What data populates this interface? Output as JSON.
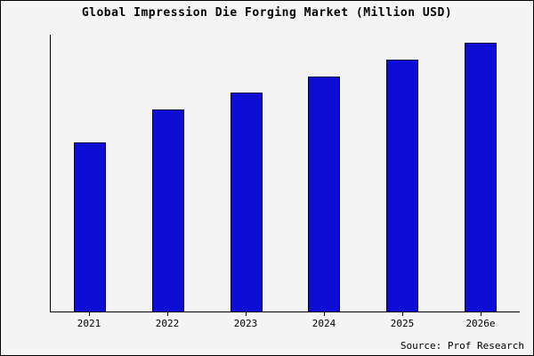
{
  "title": "Global Impression Die Forging Market (Million USD)",
  "source": "Source: Prof Research",
  "colors": {
    "bar_fill": "#0d0dd6",
    "bar_edge": "#000040",
    "background": "#f4f4f4",
    "frame_border": "#000000"
  },
  "chart_data": {
    "type": "bar",
    "title": "Global Impression Die Forging Market (Million USD)",
    "categories": [
      "2021",
      "2022",
      "2023",
      "2024",
      "2025",
      "2026e"
    ],
    "values": [
      61,
      73,
      79,
      85,
      91,
      97
    ],
    "xlabel": "",
    "ylabel": "",
    "ylim": [
      0,
      100
    ],
    "grid": false,
    "legend": false,
    "y_axis_labels_visible": false,
    "source": "Source: Prof Research"
  }
}
